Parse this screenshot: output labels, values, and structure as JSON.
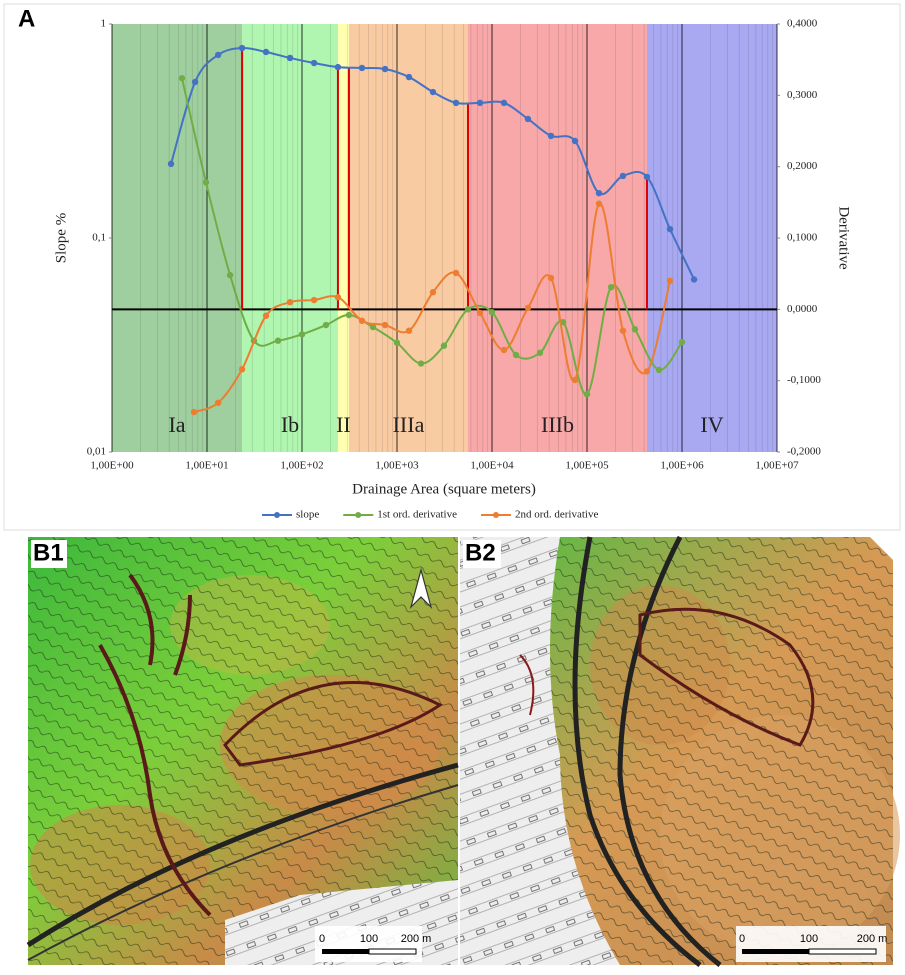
{
  "panel_label": "A",
  "chart_data": {
    "type": "line",
    "xlabel": "Drainage Area (square meters)",
    "ylabel": "Slope %",
    "y2label": "Derivative",
    "xscale": "log",
    "yscale": "log",
    "xlim": [
      1,
      10000000
    ],
    "xticks": [
      {
        "value": 1,
        "label": "1,00E+00"
      },
      {
        "value": 10,
        "label": "1,00E+01"
      },
      {
        "value": 100,
        "label": "1,00E+02"
      },
      {
        "value": 1000,
        "label": "1,00E+03"
      },
      {
        "value": 10000,
        "label": "1,00E+04"
      },
      {
        "value": 100000,
        "label": "1,00E+05"
      },
      {
        "value": 1000000,
        "label": "1,00E+06"
      },
      {
        "value": 10000000,
        "label": "1,00E+07"
      }
    ],
    "ylim": [
      0.01,
      1
    ],
    "yticks": [
      {
        "value": 0.01,
        "label": "0,01"
      },
      {
        "value": 0.1,
        "label": "0,1"
      },
      1
    ],
    "y2lim": [
      -0.2,
      0.4
    ],
    "y2ticks": [
      {
        "value": -0.2,
        "label": "-0,2000"
      },
      {
        "value": -0.1,
        "label": "-0,1000"
      },
      {
        "value": 0,
        "label": "0,0000"
      },
      {
        "value": 0.1,
        "label": "0,1000"
      },
      {
        "value": 0.2,
        "label": "0,2000"
      },
      {
        "value": 0.3,
        "label": "0,3000"
      },
      {
        "value": 0.4,
        "label": "0,4000"
      }
    ],
    "grid": true,
    "legend": "bottom",
    "zones": [
      {
        "name": "Ia",
        "from": 1,
        "to": 23.4,
        "color": "#9fcf9f"
      },
      {
        "name": "Ib",
        "from": 23.4,
        "to": 239,
        "color": "#b0f5b0"
      },
      {
        "name": "II",
        "from": 239,
        "to": 312,
        "color": "#ffffb0"
      },
      {
        "name": "IIIa",
        "from": 312,
        "to": 5590,
        "color": "#f9cba3"
      },
      {
        "name": "IIIb",
        "from": 5590,
        "to": 428000,
        "color": "#f8a8a8"
      },
      {
        "name": "IV",
        "from": 428000,
        "to": 10000000,
        "color": "#a9a9f2"
      }
    ],
    "boundaries": [
      23.4,
      239,
      312,
      5590,
      428000
    ],
    "boundary_color": "#e00000",
    "series": [
      {
        "name": "slope",
        "color": "#4472c4",
        "x": [
          4.18,
          7.5,
          13.1,
          23.4,
          41.8,
          74.8,
          134,
          239,
          428,
          748,
          1337,
          2390,
          4180,
          7480,
          13370,
          23900,
          41800,
          74800,
          133700,
          239000,
          428000,
          748000,
          1340000
        ],
        "values": [
          0.222,
          0.536,
          0.717,
          0.772,
          0.74,
          0.694,
          0.657,
          0.629,
          0.623,
          0.616,
          0.565,
          0.481,
          0.428,
          0.428,
          0.428,
          0.36,
          0.3,
          0.284,
          0.162,
          0.195,
          0.193,
          0.11,
          0.064
        ]
      },
      {
        "name": "1st ord. derivative",
        "color": "#70ad47",
        "axis": "y2",
        "x": [
          5.45,
          9.76,
          17.5,
          31.2,
          55.9,
          100,
          179,
          312,
          559,
          1000,
          1790,
          3120,
          5590,
          10000,
          17900,
          32000,
          55900,
          100000,
          179000,
          320000,
          573000,
          1000000
        ],
        "values": [
          0.324,
          0.178,
          0.048,
          -0.044,
          -0.044,
          -0.035,
          -0.022,
          -0.008,
          -0.025,
          -0.047,
          -0.076,
          -0.051,
          0.0,
          -0.004,
          -0.064,
          -0.061,
          -0.018,
          -0.119,
          0.031,
          -0.028,
          -0.085,
          -0.046
        ]
      },
      {
        "name": "2nd ord. derivative",
        "color": "#ed7d31",
        "axis": "y2",
        "x": [
          7.3,
          13.1,
          23.4,
          41.8,
          74.8,
          134,
          239,
          428,
          748,
          1337,
          2390,
          4180,
          7480,
          13370,
          23900,
          41800,
          74800,
          133700,
          239000,
          428000,
          748000
        ],
        "values": [
          -0.144,
          -0.131,
          -0.084,
          -0.009,
          0.01,
          0.013,
          0.017,
          -0.016,
          -0.022,
          -0.03,
          0.024,
          0.051,
          -0.005,
          -0.057,
          0.002,
          0.044,
          -0.099,
          0.148,
          -0.03,
          -0.087,
          0.04
        ]
      }
    ]
  },
  "maps": [
    {
      "label": "B1",
      "scale_labels": [
        "0",
        "100",
        "200 m"
      ]
    },
    {
      "label": "B2",
      "scale_labels": [
        "0",
        "100",
        "200 m"
      ]
    }
  ]
}
